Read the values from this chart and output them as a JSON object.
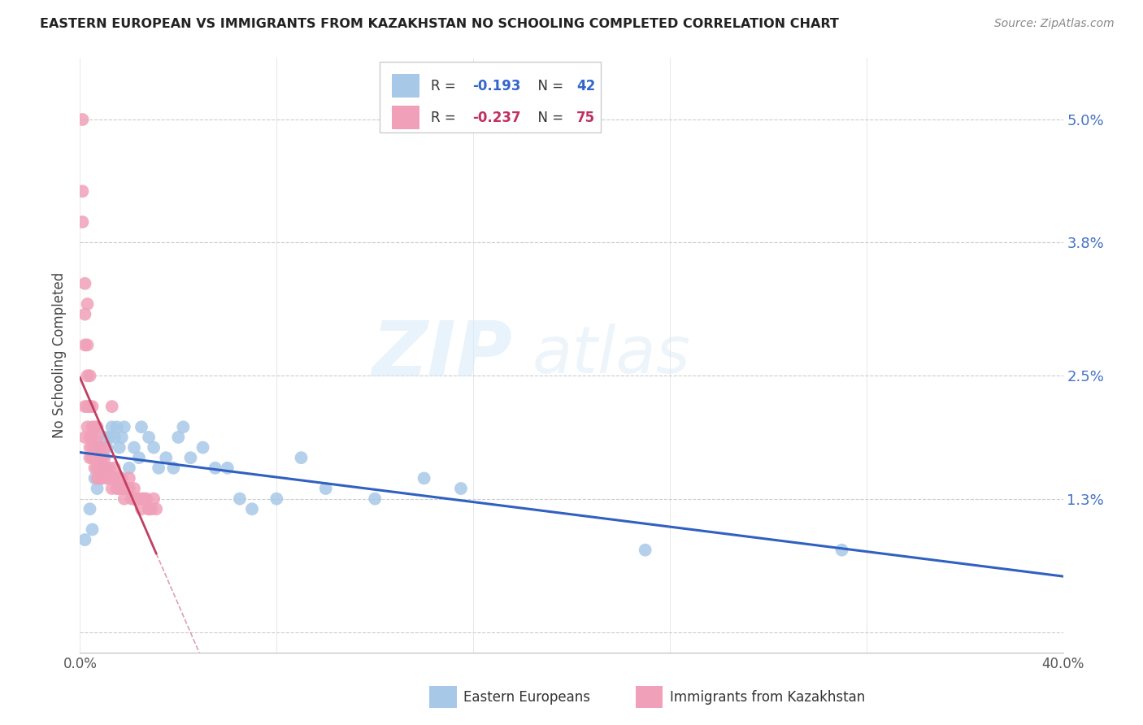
{
  "title": "EASTERN EUROPEAN VS IMMIGRANTS FROM KAZAKHSTAN NO SCHOOLING COMPLETED CORRELATION CHART",
  "source": "Source: ZipAtlas.com",
  "ylabel": "No Schooling Completed",
  "yticks": [
    0.0,
    0.013,
    0.025,
    0.038,
    0.05
  ],
  "ytick_labels": [
    "",
    "1.3%",
    "2.5%",
    "3.8%",
    "5.0%"
  ],
  "xlim": [
    0.0,
    0.4
  ],
  "ylim": [
    -0.002,
    0.056
  ],
  "blue_R": -0.193,
  "blue_N": 42,
  "pink_R": -0.237,
  "pink_N": 75,
  "blue_color": "#a8c8e8",
  "pink_color": "#f0a0b8",
  "blue_line_color": "#3060c0",
  "pink_line_color": "#c04060",
  "legend_blue_label": "Eastern Europeans",
  "legend_pink_label": "Immigrants from Kazakhstan",
  "watermark_zip": "ZIP",
  "watermark_atlas": "atlas",
  "blue_points_x": [
    0.002,
    0.004,
    0.005,
    0.006,
    0.007,
    0.008,
    0.009,
    0.01,
    0.01,
    0.011,
    0.012,
    0.013,
    0.014,
    0.015,
    0.016,
    0.017,
    0.018,
    0.02,
    0.022,
    0.024,
    0.025,
    0.028,
    0.03,
    0.032,
    0.035,
    0.038,
    0.04,
    0.042,
    0.045,
    0.05,
    0.055,
    0.06,
    0.065,
    0.07,
    0.08,
    0.09,
    0.1,
    0.12,
    0.14,
    0.155,
    0.23,
    0.31
  ],
  "blue_points_y": [
    0.009,
    0.012,
    0.01,
    0.015,
    0.014,
    0.018,
    0.017,
    0.019,
    0.016,
    0.018,
    0.019,
    0.02,
    0.019,
    0.02,
    0.018,
    0.019,
    0.02,
    0.016,
    0.018,
    0.017,
    0.02,
    0.019,
    0.018,
    0.016,
    0.017,
    0.016,
    0.019,
    0.02,
    0.017,
    0.018,
    0.016,
    0.016,
    0.013,
    0.012,
    0.013,
    0.017,
    0.014,
    0.013,
    0.015,
    0.014,
    0.008,
    0.008
  ],
  "pink_points_x": [
    0.001,
    0.001,
    0.001,
    0.002,
    0.002,
    0.002,
    0.002,
    0.002,
    0.003,
    0.003,
    0.003,
    0.003,
    0.003,
    0.004,
    0.004,
    0.004,
    0.004,
    0.004,
    0.005,
    0.005,
    0.005,
    0.005,
    0.005,
    0.006,
    0.006,
    0.006,
    0.006,
    0.007,
    0.007,
    0.007,
    0.007,
    0.007,
    0.008,
    0.008,
    0.008,
    0.008,
    0.009,
    0.009,
    0.009,
    0.01,
    0.01,
    0.01,
    0.011,
    0.011,
    0.012,
    0.012,
    0.013,
    0.013,
    0.014,
    0.014,
    0.015,
    0.015,
    0.016,
    0.016,
    0.017,
    0.017,
    0.018,
    0.018,
    0.019,
    0.02,
    0.02,
    0.021,
    0.022,
    0.022,
    0.023,
    0.024,
    0.025,
    0.025,
    0.026,
    0.027,
    0.028,
    0.028,
    0.029,
    0.03,
    0.031
  ],
  "pink_points_y": [
    0.05,
    0.043,
    0.04,
    0.034,
    0.031,
    0.028,
    0.022,
    0.019,
    0.032,
    0.028,
    0.025,
    0.022,
    0.02,
    0.025,
    0.022,
    0.019,
    0.018,
    0.017,
    0.022,
    0.02,
    0.019,
    0.018,
    0.017,
    0.02,
    0.018,
    0.017,
    0.016,
    0.02,
    0.019,
    0.017,
    0.016,
    0.015,
    0.018,
    0.017,
    0.016,
    0.015,
    0.017,
    0.016,
    0.015,
    0.018,
    0.017,
    0.016,
    0.016,
    0.015,
    0.016,
    0.015,
    0.022,
    0.014,
    0.016,
    0.015,
    0.015,
    0.014,
    0.015,
    0.014,
    0.015,
    0.014,
    0.014,
    0.013,
    0.014,
    0.015,
    0.014,
    0.013,
    0.014,
    0.013,
    0.013,
    0.013,
    0.013,
    0.012,
    0.013,
    0.013,
    0.012,
    0.012,
    0.012,
    0.013,
    0.012
  ]
}
